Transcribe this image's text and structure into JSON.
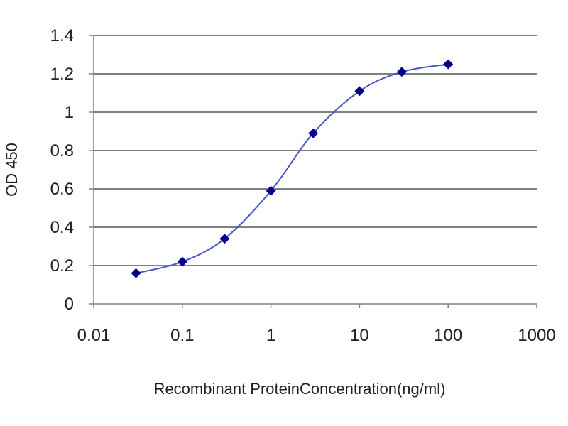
{
  "chart_data": {
    "type": "line",
    "xscale": "log",
    "xlabel": "Recombinant ProteinConcentration(ng/ml)",
    "ylabel": "OD 450",
    "xlim": [
      0.01,
      1000
    ],
    "ylim": [
      0,
      1.4
    ],
    "x_ticks": [
      0.01,
      0.1,
      1,
      10,
      100,
      1000
    ],
    "x_tick_labels": [
      "0.01",
      "0.1",
      "1",
      "10",
      "100",
      "1000"
    ],
    "y_ticks": [
      0,
      0.2,
      0.4,
      0.6,
      0.8,
      1,
      1.2,
      1.4
    ],
    "y_tick_labels": [
      "0",
      "0.2",
      "0.4",
      "0.6",
      "0.8",
      "1",
      "1.2",
      "1.4"
    ],
    "grid": "horizontal",
    "legend": "none",
    "series": [
      {
        "x": [
          0.03,
          0.1,
          0.3,
          1,
          3,
          10,
          30,
          100
        ],
        "y": [
          0.16,
          0.22,
          0.34,
          0.59,
          0.89,
          1.11,
          1.21,
          1.25
        ],
        "color": "#00008b",
        "line_color": "#4a55c8",
        "marker": "diamond"
      }
    ],
    "colors": {
      "plot_bg": "#ffffff",
      "grid": "#808080",
      "axis": "#808080"
    }
  }
}
